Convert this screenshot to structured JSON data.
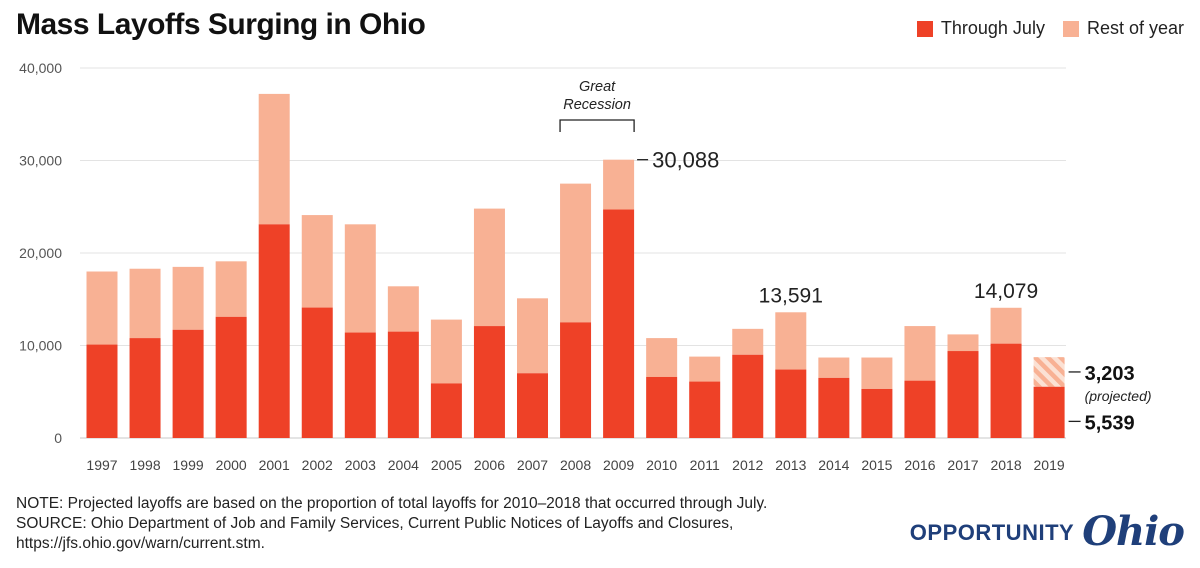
{
  "chart_data": {
    "type": "bar",
    "title": "Mass Layoffs Surging in Ohio",
    "stacked": true,
    "categories": [
      "1997",
      "1998",
      "1999",
      "2000",
      "2001",
      "2002",
      "2003",
      "2004",
      "2005",
      "2006",
      "2007",
      "2008",
      "2009",
      "2010",
      "2011",
      "2012",
      "2013",
      "2014",
      "2015",
      "2016",
      "2017",
      "2018",
      "2019"
    ],
    "series": [
      {
        "name": "Through July",
        "color": "#ee4127",
        "values": [
          10100,
          10800,
          11700,
          13100,
          23100,
          14100,
          11400,
          11500,
          5900,
          12100,
          7000,
          12500,
          24700,
          6600,
          6100,
          9000,
          7400,
          6500,
          5300,
          6200,
          9400,
          10200,
          5539
        ]
      },
      {
        "name": "Rest of year",
        "color": "#f8b194",
        "values": [
          7900,
          7500,
          6800,
          6000,
          14100,
          10000,
          11700,
          4900,
          6900,
          12700,
          8100,
          15000,
          5388,
          4200,
          2700,
          2800,
          6191,
          2200,
          3400,
          5900,
          1800,
          3879,
          3203
        ]
      }
    ],
    "projected_category": "2019",
    "ylim": [
      0,
      40000
    ],
    "yticks": [
      "0",
      "10,000",
      "20,000",
      "30,000",
      "40,000"
    ],
    "ytick_values": [
      0,
      10000,
      20000,
      30000,
      40000
    ],
    "grid": true,
    "legend_position": "top-right",
    "annotations": {
      "recession_label": "Great Recession",
      "recession_start": "2008",
      "recession_end": "2009",
      "total_2009": "30,088",
      "total_2013": "13,591",
      "total_2018": "14,079",
      "projected_rest_2019": "3,203",
      "projected_note": "(projected)",
      "through_july_2019": "5,539"
    }
  },
  "footnote": {
    "note": "NOTE: Projected layoffs are based on the proportion of total layoffs for 2010–2018 that occurred through July.",
    "source_line1": "SOURCE: Ohio Department of Job and Family Services, Current Public Notices of Layoffs and Closures,",
    "source_line2": "https://jfs.ohio.gov/warn/current.stm."
  },
  "logo": {
    "word": "OPPORTUNITY",
    "script": "Ohio"
  }
}
